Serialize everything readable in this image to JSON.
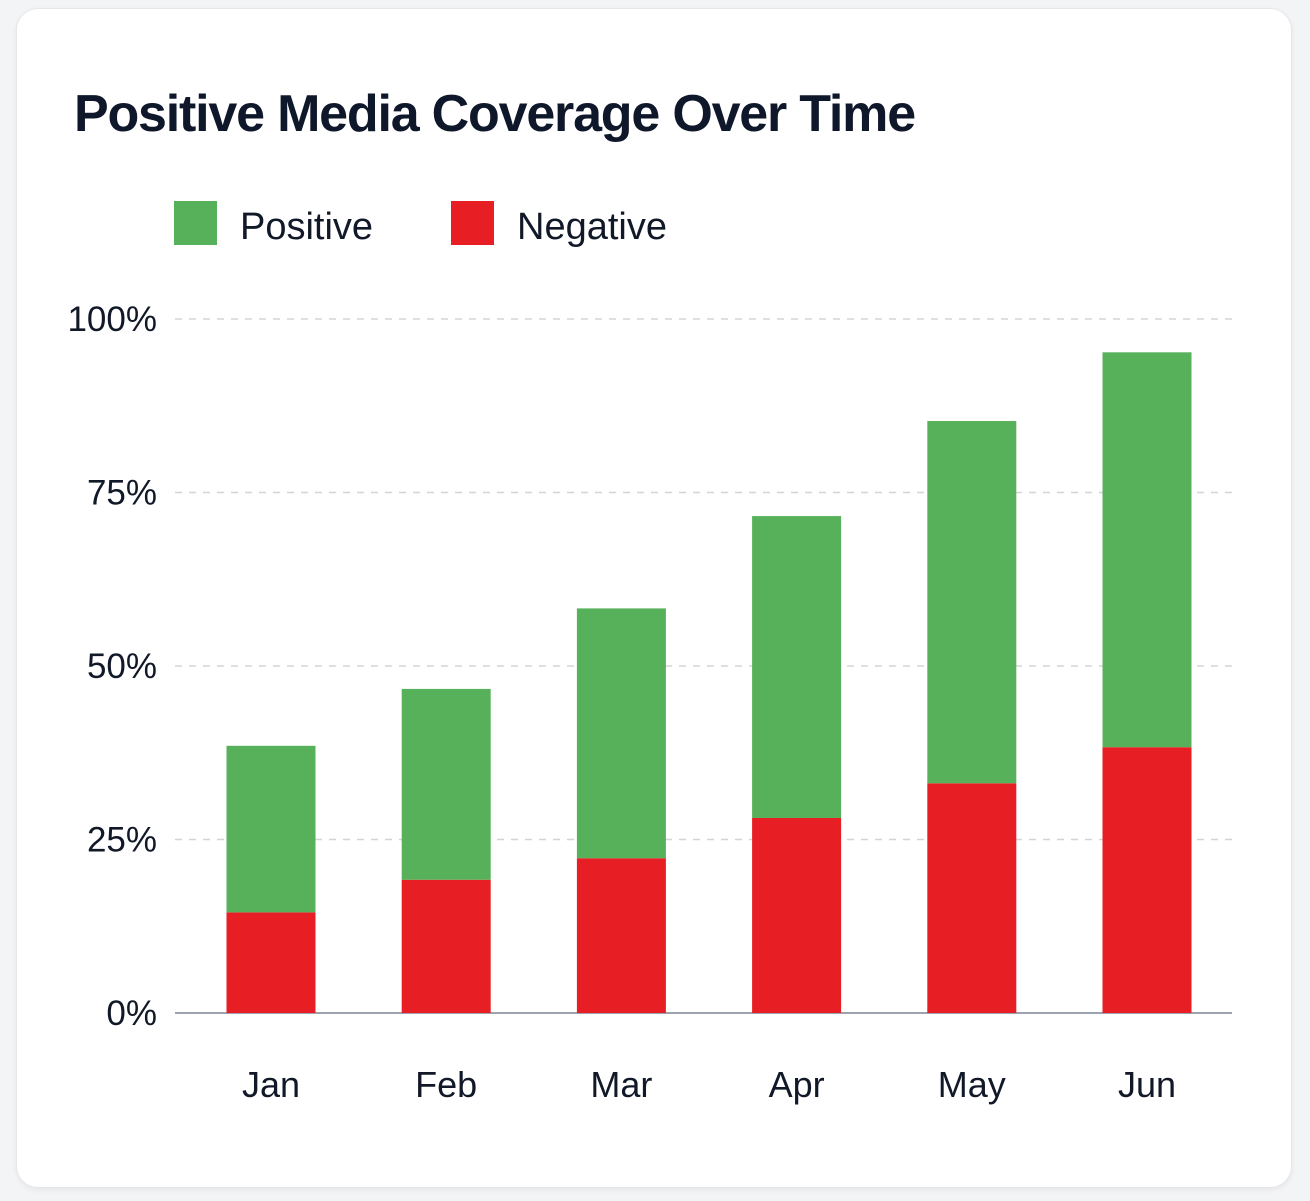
{
  "chart_data": {
    "type": "bar",
    "stacked": true,
    "title": "Positive Media Coverage Over Time",
    "xlabel": "",
    "ylabel": "",
    "categories": [
      "Jan",
      "Feb",
      "Mar",
      "Apr",
      "May",
      "Jun"
    ],
    "series": [
      {
        "name": "Negative",
        "color": "#e81e25",
        "values": [
          14.5,
          19.2,
          22.3,
          28.1,
          33.1,
          38.3
        ]
      },
      {
        "name": "Positive",
        "color": "#57b05a",
        "values": [
          24,
          27.5,
          36,
          43.5,
          52.2,
          56.9
        ]
      }
    ],
    "legend_order": [
      "Positive",
      "Negative"
    ],
    "ylim": [
      0,
      100
    ],
    "yticks": [
      0,
      25,
      50,
      75,
      100
    ],
    "ytick_labels": [
      "0%",
      "25%",
      "50%",
      "75%",
      "100%"
    ],
    "grid": true,
    "legend_position": "top-left"
  }
}
